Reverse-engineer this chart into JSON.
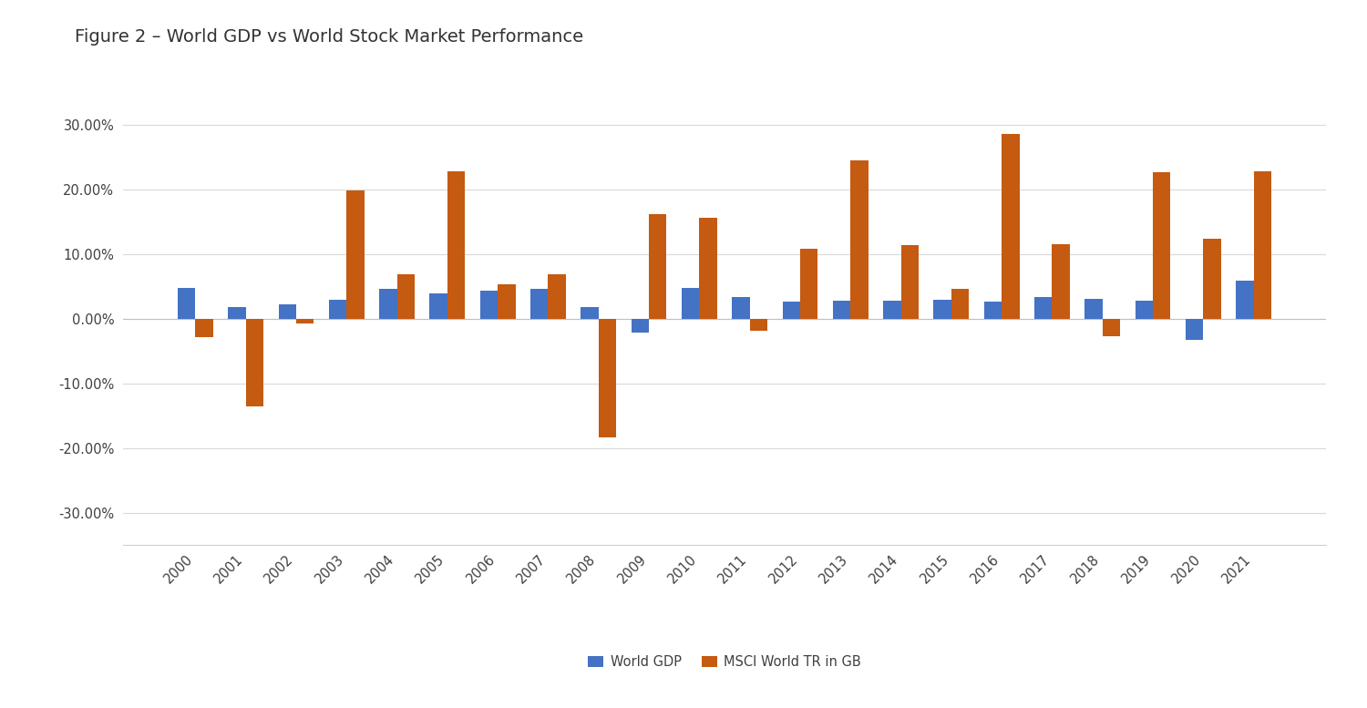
{
  "title": "Figure 2 – World GDP vs World Stock Market Performance",
  "years": [
    2000,
    2001,
    2002,
    2003,
    2004,
    2005,
    2006,
    2007,
    2008,
    2009,
    2010,
    2011,
    2012,
    2013,
    2014,
    2015,
    2016,
    2017,
    2018,
    2019,
    2020,
    2021
  ],
  "world_gdp": [
    0.0478,
    0.0175,
    0.0215,
    0.0285,
    0.0455,
    0.0385,
    0.0435,
    0.0455,
    0.0175,
    -0.022,
    0.047,
    0.033,
    0.026,
    0.027,
    0.028,
    0.029,
    0.026,
    0.033,
    0.031,
    0.027,
    -0.033,
    0.059
  ],
  "msci": [
    -0.028,
    -0.135,
    -0.008,
    0.198,
    0.069,
    0.228,
    0.053,
    0.068,
    -0.183,
    0.161,
    0.156,
    -0.019,
    0.108,
    0.245,
    0.114,
    0.046,
    0.285,
    0.115,
    -0.027,
    0.226,
    0.123,
    0.228
  ],
  "gdp_color": "#4472c4",
  "msci_color": "#c55a11",
  "bar_width": 0.35,
  "ylim": [
    -0.35,
    0.35
  ],
  "yticks": [
    -0.3,
    -0.2,
    -0.1,
    0.0,
    0.1,
    0.2,
    0.3
  ],
  "background_color": "#ffffff",
  "grid_color": "#d9d9d9",
  "title_fontsize": 14,
  "tick_fontsize": 10.5,
  "legend_labels": [
    "World GDP",
    "MSCI World TR in GB"
  ],
  "border_color": "#d0d0d0"
}
